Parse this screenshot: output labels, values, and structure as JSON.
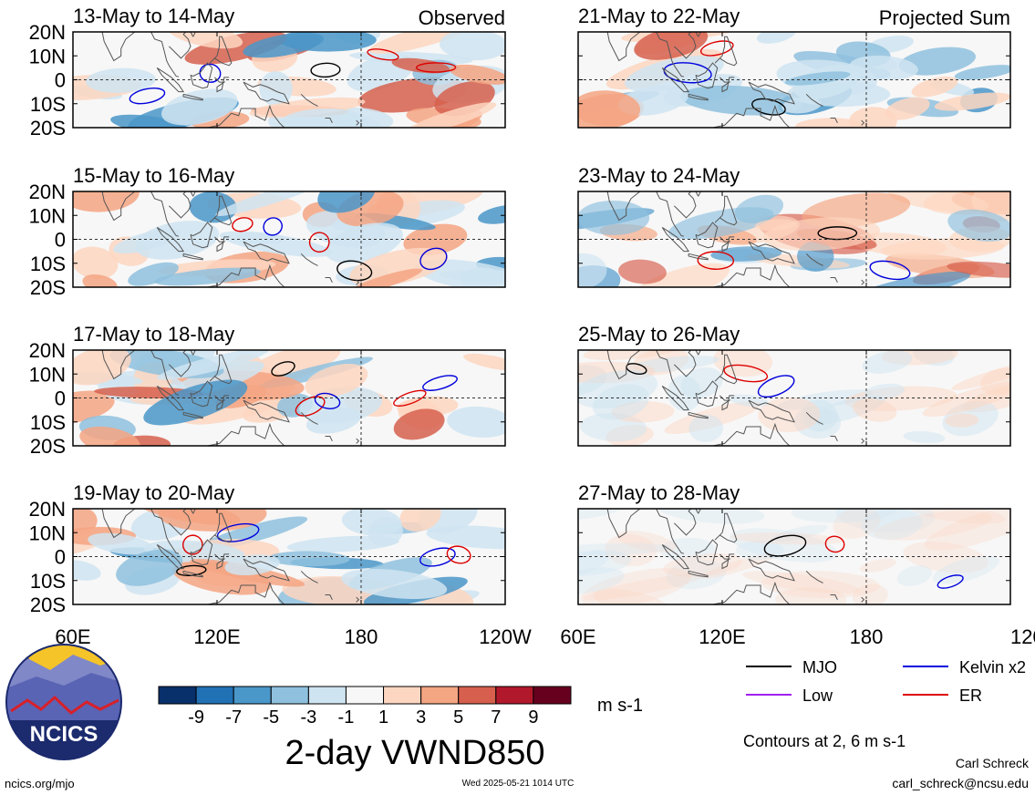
{
  "chart_data": {
    "type": "heatmap",
    "variable_title": "2-day VWND850",
    "units": "m s-1",
    "observed_label": "Observed",
    "projected_label": "Projected Sum",
    "x_ticks": [
      "60E",
      "120E",
      "180",
      "120W"
    ],
    "y_ticks": [
      "20N",
      "10N",
      "0",
      "10S",
      "20S"
    ],
    "xlim": [
      60,
      240
    ],
    "ylim": [
      -20,
      20
    ],
    "colorbar": {
      "labels": [
        "-9",
        "-7",
        "-5",
        "-3",
        "-1",
        "1",
        "3",
        "5",
        "7",
        "9"
      ],
      "colors": [
        "#08306b",
        "#2171b5",
        "#4a97c9",
        "#8fc1de",
        "#cfe4f1",
        "#f7f7f7",
        "#fdd6c1",
        "#f4a582",
        "#d6604d",
        "#b2182b",
        "#67001f"
      ]
    },
    "contour_note": "Contours at 2, 6 m s-1",
    "legend": [
      {
        "name": "MJO",
        "color": "#000000"
      },
      {
        "name": "Kelvin x2",
        "color": "#0000dd"
      },
      {
        "name": "Low",
        "color": "#a020f0"
      },
      {
        "name": "ER",
        "color": "#dd0000"
      }
    ],
    "panels": [
      {
        "id": "obs-1",
        "period": "13-May to 14-May",
        "column": "observed"
      },
      {
        "id": "obs-2",
        "period": "15-May to 16-May",
        "column": "observed"
      },
      {
        "id": "obs-3",
        "period": "17-May to 18-May",
        "column": "observed"
      },
      {
        "id": "obs-4",
        "period": "19-May to 20-May",
        "column": "observed"
      },
      {
        "id": "proj-1",
        "period": "21-May to 22-May",
        "column": "projected"
      },
      {
        "id": "proj-2",
        "period": "23-May to 24-May",
        "column": "projected"
      },
      {
        "id": "proj-3",
        "period": "25-May to 26-May",
        "column": "projected"
      },
      {
        "id": "proj-4",
        "period": "27-May to 28-May",
        "column": "projected"
      }
    ]
  },
  "footer": {
    "logo_text": "NCICS",
    "site": "ncics.org/mjo",
    "timestamp": "Wed 2025-05-21 1014 UTC",
    "author": "Carl Schreck",
    "email": "carl_schreck@ncsu.edu"
  },
  "colors": {
    "land_outline": "#555555",
    "panel_background": "#f7f7f7"
  }
}
